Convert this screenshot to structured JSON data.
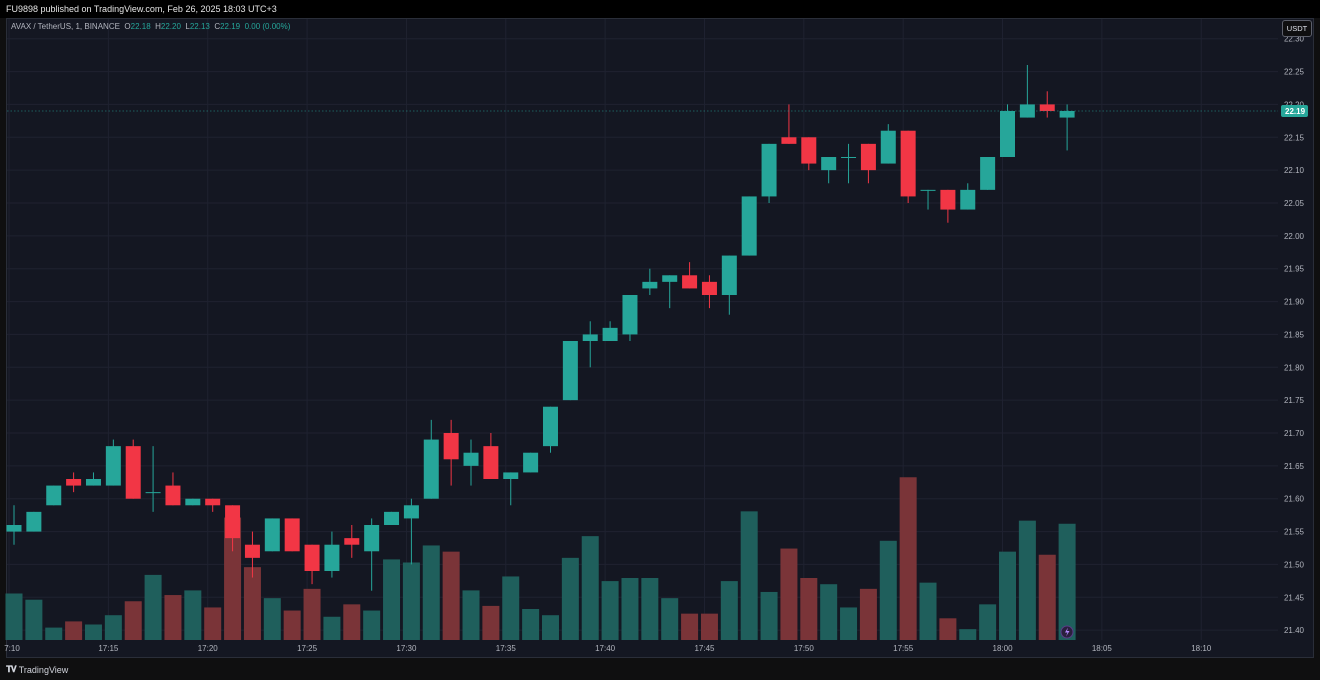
{
  "header": {
    "published": "FU9898 published on TradingView.com, Feb 26, 2025 18:03 UTC+3"
  },
  "legend": {
    "symbol": "AVAX / TetherUS, 1, BINANCE",
    "o_label": "O",
    "o": "22.18",
    "h_label": "H",
    "h": "22.20",
    "l_label": "L",
    "l": "22.13",
    "c_label": "C",
    "c": "22.19",
    "change": "0.00 (0.00%)"
  },
  "currency_button": "USDT",
  "last_price_label": "22.19",
  "footer": {
    "brand": "TradingView"
  },
  "colors": {
    "up": "#26a69a",
    "down": "#f23645",
    "up_volume": "#1f5f5c",
    "down_volume": "#7a3438",
    "background": "#141722",
    "grid": "#1f2230"
  },
  "chart_data": {
    "type": "candlestick",
    "y_ticks": [
      "21.40",
      "21.45",
      "21.50",
      "21.55",
      "21.60",
      "21.65",
      "21.70",
      "21.75",
      "21.80",
      "21.85",
      "21.90",
      "21.95",
      "22.00",
      "22.05",
      "22.10",
      "22.15",
      "22.20",
      "22.25",
      "22.30"
    ],
    "ylim": [
      21.385,
      22.33
    ],
    "x_ticks": [
      {
        "label": "7:10",
        "idx": -0.25
      },
      {
        "label": "17:15",
        "idx": 4.75
      },
      {
        "label": "17:20",
        "idx": 9.75
      },
      {
        "label": "17:25",
        "idx": 14.75
      },
      {
        "label": "17:30",
        "idx": 19.75
      },
      {
        "label": "17:35",
        "idx": 24.75
      },
      {
        "label": "17:40",
        "idx": 29.75
      },
      {
        "label": "17:45",
        "idx": 34.75
      },
      {
        "label": "17:50",
        "idx": 39.75
      },
      {
        "label": "17:55",
        "idx": 44.75
      },
      {
        "label": "18:00",
        "idx": 49.75
      },
      {
        "label": "18:05",
        "idx": 54.75
      },
      {
        "label": "18:10",
        "idx": 59.75
      }
    ],
    "last_price": 22.19,
    "candles": [
      {
        "o": 21.55,
        "h": 21.59,
        "l": 21.53,
        "c": 21.56,
        "v": 0.3
      },
      {
        "o": 21.55,
        "h": 21.58,
        "l": 21.55,
        "c": 21.58,
        "v": 0.26
      },
      {
        "o": 21.59,
        "h": 21.62,
        "l": 21.59,
        "c": 21.62,
        "v": 0.08
      },
      {
        "o": 21.63,
        "h": 21.64,
        "l": 21.61,
        "c": 21.62,
        "v": 0.12
      },
      {
        "o": 21.62,
        "h": 21.64,
        "l": 21.62,
        "c": 21.63,
        "v": 0.1
      },
      {
        "o": 21.62,
        "h": 21.69,
        "l": 21.62,
        "c": 21.68,
        "v": 0.16
      },
      {
        "o": 21.68,
        "h": 21.69,
        "l": 21.6,
        "c": 21.6,
        "v": 0.25
      },
      {
        "o": 21.61,
        "h": 21.68,
        "l": 21.58,
        "c": 21.61,
        "v": 0.42
      },
      {
        "o": 21.62,
        "h": 21.64,
        "l": 21.59,
        "c": 21.59,
        "v": 0.29
      },
      {
        "o": 21.59,
        "h": 21.6,
        "l": 21.59,
        "c": 21.6,
        "v": 0.32
      },
      {
        "o": 21.6,
        "h": 21.6,
        "l": 21.58,
        "c": 21.59,
        "v": 0.21
      },
      {
        "o": 21.59,
        "h": 21.59,
        "l": 21.52,
        "c": 21.54,
        "v": 0.79
      },
      {
        "o": 21.53,
        "h": 21.55,
        "l": 21.48,
        "c": 21.51,
        "v": 0.47
      },
      {
        "o": 21.52,
        "h": 21.57,
        "l": 21.52,
        "c": 21.57,
        "v": 0.27
      },
      {
        "o": 21.57,
        "h": 21.57,
        "l": 21.52,
        "c": 21.52,
        "v": 0.19
      },
      {
        "o": 21.53,
        "h": 21.53,
        "l": 21.47,
        "c": 21.49,
        "v": 0.33
      },
      {
        "o": 21.49,
        "h": 21.55,
        "l": 21.48,
        "c": 21.53,
        "v": 0.15
      },
      {
        "o": 21.54,
        "h": 21.56,
        "l": 21.51,
        "c": 21.53,
        "v": 0.23
      },
      {
        "o": 21.52,
        "h": 21.57,
        "l": 21.46,
        "c": 21.56,
        "v": 0.19
      },
      {
        "o": 21.56,
        "h": 21.58,
        "l": 21.56,
        "c": 21.58,
        "v": 0.52
      },
      {
        "o": 21.57,
        "h": 21.6,
        "l": 21.5,
        "c": 21.59,
        "v": 0.5
      },
      {
        "o": 21.6,
        "h": 21.72,
        "l": 21.6,
        "c": 21.69,
        "v": 0.61
      },
      {
        "o": 21.7,
        "h": 21.72,
        "l": 21.62,
        "c": 21.66,
        "v": 0.57
      },
      {
        "o": 21.65,
        "h": 21.69,
        "l": 21.62,
        "c": 21.67,
        "v": 0.32
      },
      {
        "o": 21.68,
        "h": 21.7,
        "l": 21.63,
        "c": 21.63,
        "v": 0.22
      },
      {
        "o": 21.63,
        "h": 21.64,
        "l": 21.59,
        "c": 21.64,
        "v": 0.41
      },
      {
        "o": 21.64,
        "h": 21.67,
        "l": 21.64,
        "c": 21.67,
        "v": 0.2
      },
      {
        "o": 21.68,
        "h": 21.74,
        "l": 21.67,
        "c": 21.74,
        "v": 0.16
      },
      {
        "o": 21.75,
        "h": 21.84,
        "l": 21.75,
        "c": 21.84,
        "v": 0.53
      },
      {
        "o": 21.84,
        "h": 21.87,
        "l": 21.8,
        "c": 21.85,
        "v": 0.67
      },
      {
        "o": 21.84,
        "h": 21.87,
        "l": 21.84,
        "c": 21.86,
        "v": 0.38
      },
      {
        "o": 21.85,
        "h": 21.91,
        "l": 21.84,
        "c": 21.91,
        "v": 0.4
      },
      {
        "o": 21.92,
        "h": 21.95,
        "l": 21.91,
        "c": 21.93,
        "v": 0.4
      },
      {
        "o": 21.93,
        "h": 21.94,
        "l": 21.89,
        "c": 21.94,
        "v": 0.27
      },
      {
        "o": 21.94,
        "h": 21.96,
        "l": 21.92,
        "c": 21.92,
        "v": 0.17
      },
      {
        "o": 21.93,
        "h": 21.94,
        "l": 21.89,
        "c": 21.91,
        "v": 0.17
      },
      {
        "o": 21.91,
        "h": 21.97,
        "l": 21.88,
        "c": 21.97,
        "v": 0.38
      },
      {
        "o": 21.97,
        "h": 22.06,
        "l": 21.97,
        "c": 22.06,
        "v": 0.83
      },
      {
        "o": 22.06,
        "h": 22.14,
        "l": 22.05,
        "c": 22.14,
        "v": 0.31
      },
      {
        "o": 22.15,
        "h": 22.2,
        "l": 22.14,
        "c": 22.14,
        "v": 0.59
      },
      {
        "o": 22.15,
        "h": 22.15,
        "l": 22.1,
        "c": 22.11,
        "v": 0.4
      },
      {
        "o": 22.1,
        "h": 22.12,
        "l": 22.08,
        "c": 22.12,
        "v": 0.36
      },
      {
        "o": 22.12,
        "h": 22.14,
        "l": 22.08,
        "c": 22.12,
        "v": 0.21
      },
      {
        "o": 22.14,
        "h": 22.14,
        "l": 22.08,
        "c": 22.1,
        "v": 0.33
      },
      {
        "o": 22.11,
        "h": 22.17,
        "l": 22.11,
        "c": 22.16,
        "v": 0.64
      },
      {
        "o": 22.16,
        "h": 22.16,
        "l": 22.05,
        "c": 22.06,
        "v": 1.05
      },
      {
        "o": 22.07,
        "h": 22.07,
        "l": 22.04,
        "c": 22.07,
        "v": 0.37
      },
      {
        "o": 22.07,
        "h": 22.07,
        "l": 22.02,
        "c": 22.04,
        "v": 0.14
      },
      {
        "o": 22.04,
        "h": 22.08,
        "l": 22.04,
        "c": 22.07,
        "v": 0.07
      },
      {
        "o": 22.07,
        "h": 22.12,
        "l": 22.07,
        "c": 22.12,
        "v": 0.23
      },
      {
        "o": 22.12,
        "h": 22.2,
        "l": 22.12,
        "c": 22.19,
        "v": 0.57
      },
      {
        "o": 22.18,
        "h": 22.26,
        "l": 22.18,
        "c": 22.2,
        "v": 0.77
      },
      {
        "o": 22.2,
        "h": 22.22,
        "l": 22.18,
        "c": 22.19,
        "v": 0.55
      },
      {
        "o": 22.18,
        "h": 22.2,
        "l": 22.13,
        "c": 22.19,
        "v": 0.75
      }
    ]
  }
}
